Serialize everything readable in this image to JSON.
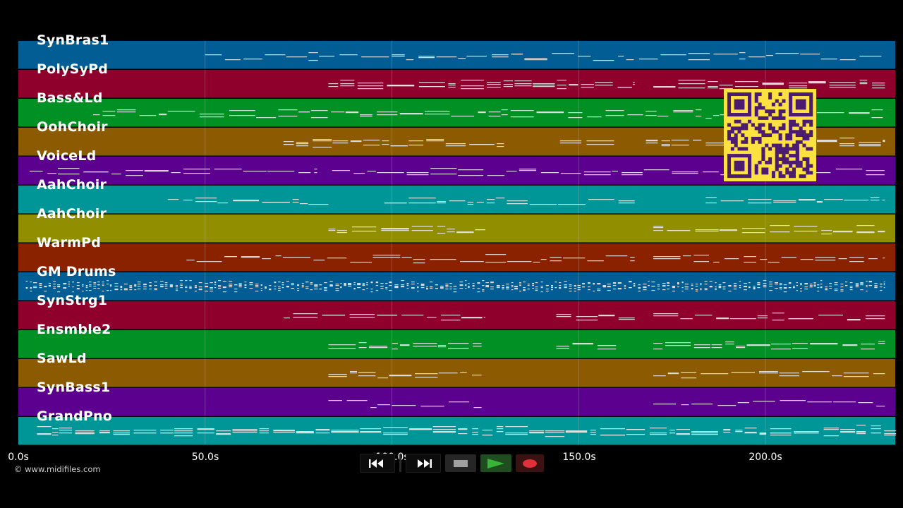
{
  "tracks": [
    {
      "name": "SynBras1",
      "color": "#015d94"
    },
    {
      "name": "PolySyPd",
      "color": "#8f002c"
    },
    {
      "name": "Bass&Ld",
      "color": "#009024"
    },
    {
      "name": "OohChoir",
      "color": "#8c5a00"
    },
    {
      "name": "VoiceLd",
      "color": "#5c0090"
    },
    {
      "name": "AahChoir",
      "color": "#009597"
    },
    {
      "name": "AahChoir",
      "color": "#918f00"
    },
    {
      "name": "WarmPd",
      "color": "#8a2200"
    },
    {
      "name": "GM Drums",
      "color": "#015d94"
    },
    {
      "name": "SynStrg1",
      "color": "#8f002c"
    },
    {
      "name": "Ensmble2",
      "color": "#009024"
    },
    {
      "name": "SawLd",
      "color": "#8c5a00"
    },
    {
      "name": "SynBass1",
      "color": "#5c0090"
    },
    {
      "name": "GrandPno",
      "color": "#009597"
    }
  ],
  "timeline": {
    "ticks": [
      "0.0s",
      "50.0s",
      "100.0s",
      "150.0s",
      "200.0s"
    ],
    "tick_values": [
      0,
      50,
      100,
      150,
      200
    ],
    "visible_range_s": [
      0,
      235
    ]
  },
  "credit": "© www.midifiles.com",
  "qr_code": {
    "icon": "qr-code-icon",
    "background": "#fbe241",
    "foreground": "#4b1a72"
  },
  "transport": {
    "rewind_icon": "rewind-icon",
    "fast_forward_icon": "fast-forward-icon",
    "stop_icon": "stop-icon",
    "play_icon": "play-icon",
    "record_icon": "record-icon",
    "stop_color": "#a0a0a0",
    "play_color": "#38b538",
    "record_color": "#e0303a"
  },
  "colors": {
    "background": "#000000",
    "note": "#e8e8e8",
    "gridline": "#c8c8c8"
  }
}
